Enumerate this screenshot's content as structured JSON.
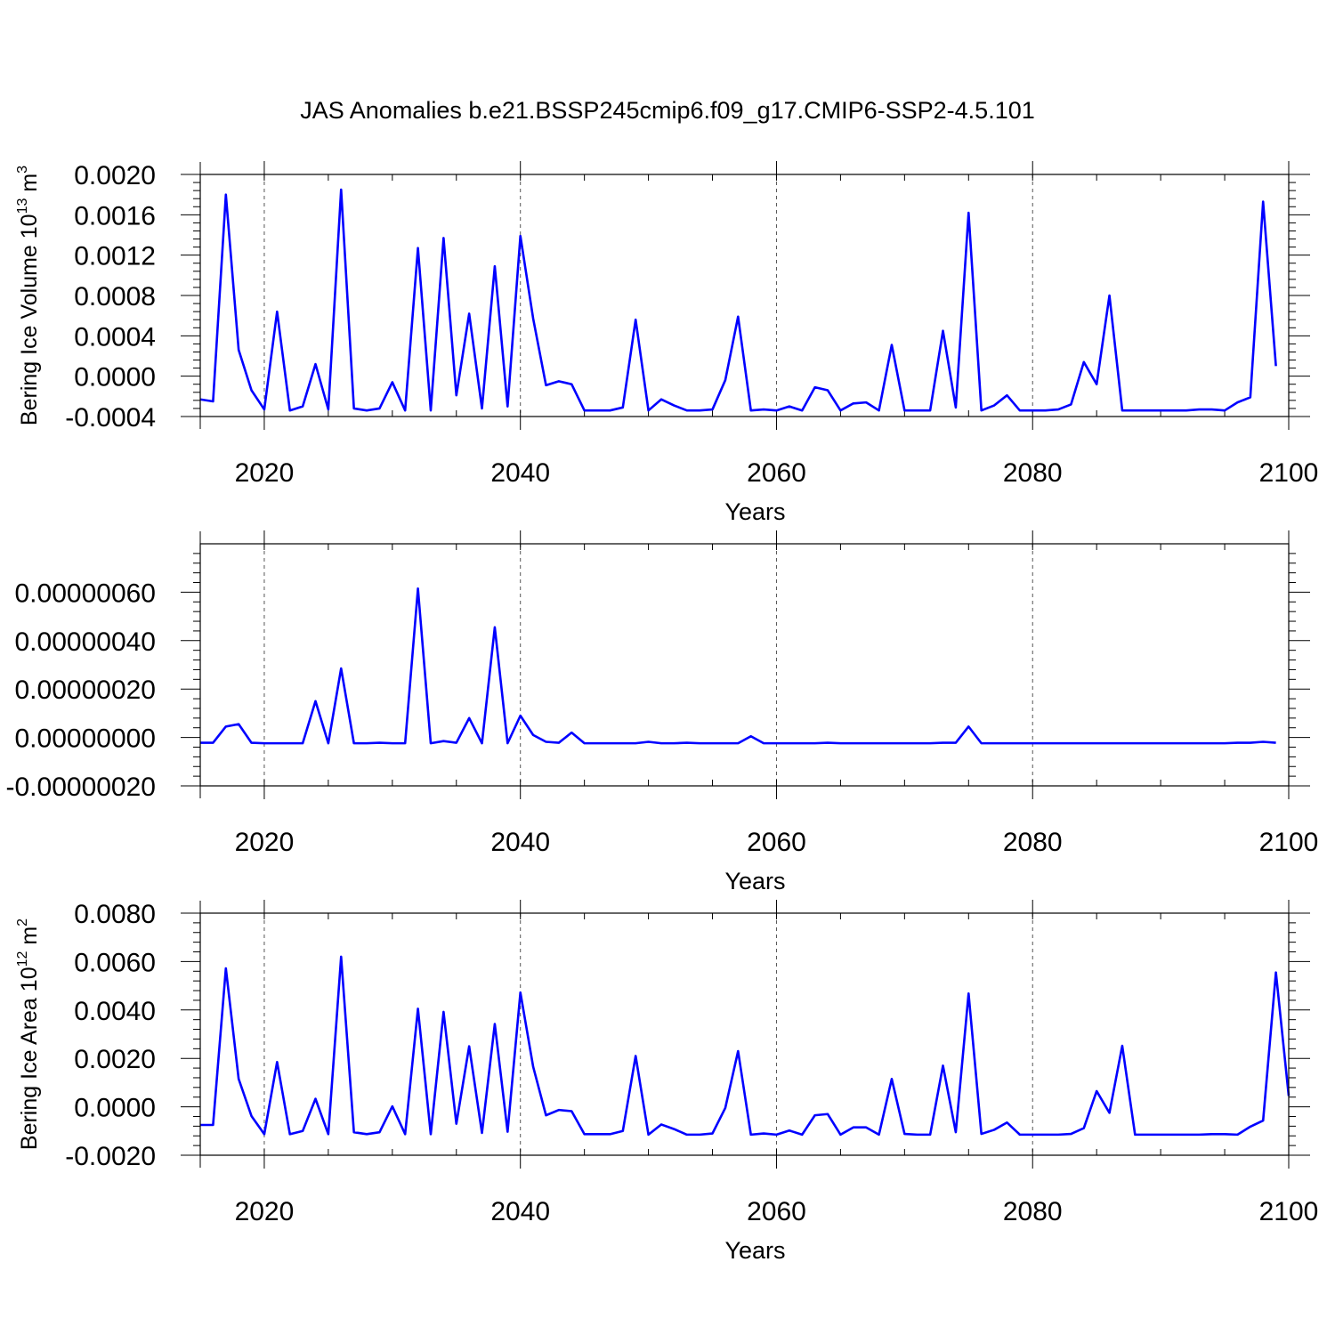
{
  "figure_title": "JAS Anomalies b.e21.BSSP245cmip6.f09_g17.CMIP6-SSP2-4.5.101",
  "colors": {
    "series": "#0000ff",
    "axes": "#000000",
    "grid": "#555555"
  },
  "chart_data": [
    {
      "type": "line",
      "title": "JAS Anomalies b.e21.BSSP245cmip6.f09_g17.CMIP6-SSP2-4.5.101",
      "xlabel": "Years",
      "ylabel": {
        "text": "Bering Ice Volume 10",
        "exp": "13",
        "unit": " m",
        "unit_exp": "3"
      },
      "xlim": [
        2015,
        2100
      ],
      "ylim": [
        -0.0004,
        0.002
      ],
      "x_ticks": [
        2020,
        2040,
        2060,
        2080,
        2100
      ],
      "x_tick_labels": [
        "2020",
        "2040",
        "2060",
        "2080",
        "2100"
      ],
      "y_ticks": [
        -0.0004,
        0.0,
        0.0004,
        0.0008,
        0.0012,
        0.0016,
        0.002
      ],
      "y_tick_labels": [
        "-0.0004",
        "0.0000",
        "0.0004",
        "0.0008",
        "0.0012",
        "0.0016",
        "0.0020"
      ],
      "grid": "vertical dashed at major x ticks",
      "legend": "none",
      "x_start": 2015,
      "values": [
        -0.00023,
        -0.00025,
        0.0018,
        0.00026,
        -0.00014,
        -0.00033,
        0.00064,
        -0.00034,
        -0.0003,
        0.00012,
        -0.00033,
        0.00185,
        -0.00032,
        -0.00034,
        -0.00032,
        -6e-05,
        -0.00034,
        0.00127,
        -0.00034,
        0.00137,
        -0.00019,
        0.00062,
        -0.00032,
        0.00109,
        -0.0003,
        0.00139,
        0.00057,
        -9e-05,
        -5e-05,
        -8e-05,
        -0.00034,
        -0.00034,
        -0.00034,
        -0.00031,
        0.00056,
        -0.00034,
        -0.00023,
        -0.00029,
        -0.00034,
        -0.00034,
        -0.00033,
        -4e-05,
        0.00059,
        -0.00034,
        -0.00033,
        -0.00034,
        -0.0003,
        -0.00034,
        -0.00011,
        -0.00014,
        -0.00034,
        -0.00027,
        -0.00026,
        -0.00034,
        0.00031,
        -0.00034,
        -0.00034,
        -0.00034,
        0.00045,
        -0.00031,
        0.00162,
        -0.00034,
        -0.00029,
        -0.00019,
        -0.00034,
        -0.00034,
        -0.00034,
        -0.00033,
        -0.00028,
        0.00014,
        -8e-05,
        0.0008,
        -0.00034,
        -0.00034,
        -0.00034,
        -0.00034,
        -0.00034,
        -0.00034,
        -0.00033,
        -0.00033,
        -0.00034,
        -0.00026,
        -0.00021,
        0.00173,
        0.0001
      ]
    },
    {
      "type": "line",
      "xlabel": "Years",
      "xlim": [
        2015,
        2100
      ],
      "ylim": [
        -2e-07,
        8e-07
      ],
      "x_ticks": [
        2020,
        2040,
        2060,
        2080,
        2100
      ],
      "x_tick_labels": [
        "2020",
        "2040",
        "2060",
        "2080",
        "2100"
      ],
      "y_ticks": [
        -2e-07,
        0.0,
        2e-07,
        4e-07,
        6e-07
      ],
      "y_tick_labels": [
        "-0.00000020",
        "0.00000000",
        "0.00000020",
        "0.00000040",
        "0.00000060"
      ],
      "grid": "vertical dashed at major x ticks",
      "legend": "none",
      "x_start": 2015,
      "values": [
        -2.2e-08,
        -2.2e-08,
        4.5e-08,
        5.5e-08,
        -2.2e-08,
        -2.4e-08,
        -2.4e-08,
        -2.4e-08,
        -2.4e-08,
        1.5e-07,
        -2.4e-08,
        2.85e-07,
        -2.4e-08,
        -2.4e-08,
        -2.2e-08,
        -2.4e-08,
        -2.4e-08,
        6.15e-07,
        -2.4e-08,
        -1.5e-08,
        -2.2e-08,
        8e-08,
        -2.4e-08,
        4.55e-07,
        -2.4e-08,
        9e-08,
        1e-08,
        -1.8e-08,
        -2.2e-08,
        2e-08,
        -2.4e-08,
        -2.4e-08,
        -2.4e-08,
        -2.4e-08,
        -2.4e-08,
        -1.8e-08,
        -2.4e-08,
        -2.4e-08,
        -2.2e-08,
        -2.4e-08,
        -2.4e-08,
        -2.4e-08,
        -2.4e-08,
        5e-09,
        -2.4e-08,
        -2.4e-08,
        -2.4e-08,
        -2.4e-08,
        -2.4e-08,
        -2.2e-08,
        -2.4e-08,
        -2.4e-08,
        -2.4e-08,
        -2.4e-08,
        -2.4e-08,
        -2.4e-08,
        -2.4e-08,
        -2.4e-08,
        -2.2e-08,
        -2.2e-08,
        4.5e-08,
        -2.4e-08,
        -2.4e-08,
        -2.4e-08,
        -2.4e-08,
        -2.4e-08,
        -2.4e-08,
        -2.4e-08,
        -2.4e-08,
        -2.4e-08,
        -2.4e-08,
        -2.4e-08,
        -2.4e-08,
        -2.4e-08,
        -2.4e-08,
        -2.4e-08,
        -2.4e-08,
        -2.4e-08,
        -2.4e-08,
        -2.4e-08,
        -2.4e-08,
        -2.2e-08,
        -2.2e-08,
        -1.8e-08,
        -2.2e-08
      ]
    },
    {
      "type": "line",
      "xlabel": "Years",
      "ylabel": {
        "text": "Bering Ice Area 10",
        "exp": "12",
        "unit": " m",
        "unit_exp": "2"
      },
      "xlim": [
        2015,
        2100
      ],
      "ylim": [
        -0.002,
        0.008
      ],
      "x_ticks": [
        2020,
        2040,
        2060,
        2080,
        2100
      ],
      "x_tick_labels": [
        "2020",
        "2040",
        "2060",
        "2080",
        "2100"
      ],
      "y_ticks": [
        -0.002,
        0.0,
        0.002,
        0.004,
        0.006,
        0.008
      ],
      "y_tick_labels": [
        "-0.0020",
        "0.0000",
        "0.0020",
        "0.0040",
        "0.0060",
        "0.0080"
      ],
      "grid": "vertical dashed at major x ticks",
      "legend": "none",
      "x_start": 2015,
      "values": [
        -0.00075,
        -0.00075,
        0.00572,
        0.00115,
        -0.00038,
        -0.00113,
        0.00185,
        -0.00113,
        -0.001,
        0.00033,
        -0.00113,
        0.0062,
        -0.00105,
        -0.00113,
        -0.00105,
        2e-05,
        -0.00113,
        0.00405,
        -0.00113,
        0.00392,
        -0.0007,
        0.0025,
        -0.00108,
        0.00342,
        -0.00103,
        0.00472,
        0.00165,
        -0.00035,
        -0.00013,
        -0.00018,
        -0.00113,
        -0.00113,
        -0.00113,
        -0.001,
        0.0021,
        -0.00115,
        -0.00073,
        -0.00092,
        -0.00115,
        -0.00115,
        -0.0011,
        -5e-05,
        0.0023,
        -0.00115,
        -0.0011,
        -0.00115,
        -0.00098,
        -0.00115,
        -0.00035,
        -0.0003,
        -0.00115,
        -0.00085,
        -0.00085,
        -0.00115,
        0.00115,
        -0.00112,
        -0.00115,
        -0.00115,
        0.0017,
        -0.00105,
        0.00468,
        -0.00112,
        -0.00095,
        -0.00065,
        -0.00115,
        -0.00115,
        -0.00115,
        -0.00115,
        -0.00112,
        -0.00088,
        0.00065,
        -0.00025,
        0.00252,
        -0.00115,
        -0.00115,
        -0.00115,
        -0.00115,
        -0.00115,
        -0.00115,
        -0.00113,
        -0.00113,
        -0.00115,
        -0.00082,
        -0.00057,
        0.00555,
        0.00045
      ]
    }
  ]
}
